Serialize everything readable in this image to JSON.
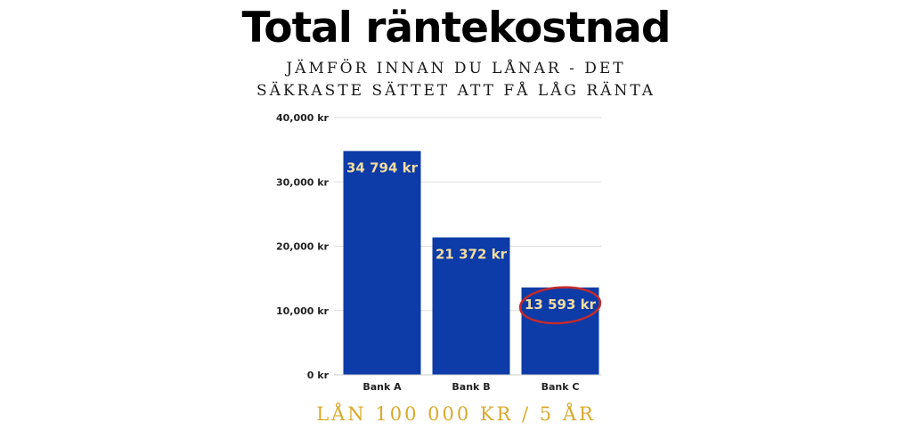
{
  "chart_data": {
    "type": "bar",
    "title": "Total räntekostnad",
    "subtitle_lines": [
      "JÄMFÖR INNAN DU LÅNAR - DET",
      "SÄKRASTE SÄTTET ATT FÅ LÅG RÄNTA"
    ],
    "categories": [
      "Bank A",
      "Bank B",
      "Bank C"
    ],
    "values": [
      34794,
      21372,
      13593
    ],
    "data_labels": [
      "34 794 kr",
      "21 372 kr",
      "13 593 kr"
    ],
    "yticks": [
      0,
      10000,
      20000,
      30000,
      40000
    ],
    "ytick_labels": [
      "0 kr",
      "10,000 kr",
      "20,000 kr",
      "30,000 kr",
      "40,000 kr"
    ],
    "ylim": [
      0,
      40000
    ],
    "grid": true,
    "highlighted_category": "Bank C",
    "footer": "LÅN 100 000 KR / 5 ÅR"
  },
  "colors": {
    "bar": "#0d3ba8",
    "data_label": "#f1dca0",
    "grid": "#dddddd",
    "highlight_circle": "#c42b2b",
    "footer": "#d9a92a"
  }
}
